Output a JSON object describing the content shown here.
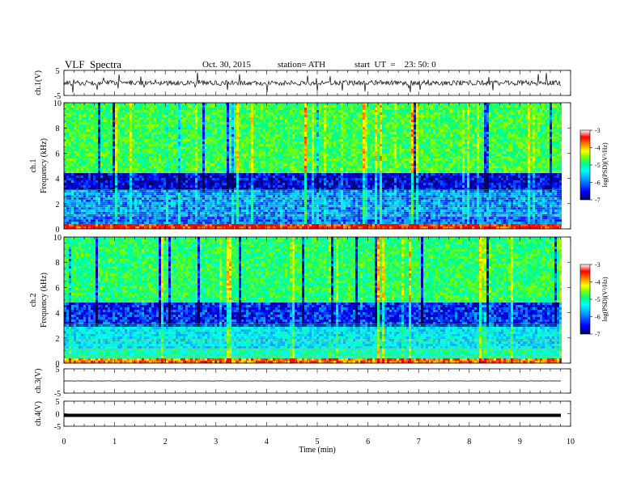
{
  "header": {
    "title": "VLF  Spectra",
    "date": "Oct. 30, 2015",
    "station": "station= ATH",
    "start": "start  UT  =    23: 50: 0"
  },
  "chart_data": [
    {
      "type": "line",
      "panel": "ch1-waveform",
      "ylabel": "ch.1(V)",
      "yticks": [
        "5",
        "-5"
      ],
      "ylim": [
        -5,
        5
      ],
      "xlim": [
        0,
        10
      ],
      "series": [
        {
          "description_hidden": true,
          "mean": 0,
          "amplitude": 1
        }
      ]
    },
    {
      "type": "heatmap",
      "panel": "ch1-spectrogram",
      "ylabel_channel": "ch.1",
      "ylabel": "Frequency  (kHz)",
      "yticks": [
        "0",
        "2",
        "4",
        "6",
        "8",
        "10"
      ],
      "ylim": [
        0,
        10
      ],
      "xlim": [
        0,
        9.8
      ],
      "colorbar": {
        "label": "log(PSD)(V²/Hz)",
        "ticks": [
          "-3",
          "-4",
          "-5",
          "-6",
          "-7"
        ],
        "range": [
          -7,
          -3
        ]
      },
      "bands": [
        {
          "from_khz": 0,
          "to_khz": 0.4,
          "level": -3.2
        },
        {
          "from_khz": 0.4,
          "to_khz": 1.0,
          "level": -6.2
        },
        {
          "from_khz": 1.0,
          "to_khz": 3.2,
          "level": -6.0
        },
        {
          "from_khz": 3.2,
          "to_khz": 4.5,
          "level": -6.6
        },
        {
          "from_khz": 4.5,
          "to_khz": 10,
          "level": -4.8
        }
      ]
    },
    {
      "type": "heatmap",
      "panel": "ch2-spectrogram",
      "ylabel_channel": "ch.2",
      "ylabel": "Frequency  (kHz)",
      "yticks": [
        "0",
        "2",
        "4",
        "6",
        "8",
        "10"
      ],
      "ylim": [
        0,
        10
      ],
      "xlim": [
        0,
        9.8
      ],
      "colorbar": {
        "label": "log(PSD)(V²/Hz)",
        "ticks": [
          "-3",
          "-4",
          "-5",
          "-6",
          "-7"
        ],
        "range": [
          -7,
          -3
        ]
      },
      "bands": [
        {
          "from_khz": 0,
          "to_khz": 0.4,
          "level": -3.5
        },
        {
          "from_khz": 0.4,
          "to_khz": 1.2,
          "level": -5.2
        },
        {
          "from_khz": 1.2,
          "to_khz": 3.0,
          "level": -5.6
        },
        {
          "from_khz": 3.0,
          "to_khz": 5.0,
          "level": -6.4
        },
        {
          "from_khz": 5.0,
          "to_khz": 10,
          "level": -4.9
        }
      ]
    },
    {
      "type": "line",
      "panel": "ch3-waveform",
      "ylabel": "ch.3(V)",
      "yticks": [
        "5",
        "-5"
      ],
      "ylim": [
        -5,
        5
      ],
      "xlim": [
        0,
        10
      ],
      "series": [
        {
          "mean": 0,
          "amplitude": 0.05
        }
      ]
    },
    {
      "type": "line",
      "panel": "ch4-waveform",
      "ylabel": "ch.4(V)",
      "yticks": [
        "5",
        "0",
        "-5"
      ],
      "ylim": [
        -5,
        5
      ],
      "xlim": [
        0,
        10
      ],
      "series": [
        {
          "mean": 0,
          "amplitude": 0.3
        }
      ]
    }
  ],
  "xaxis": {
    "label": "Time  (min)",
    "ticks": [
      "0",
      "1",
      "2",
      "3",
      "4",
      "5",
      "6",
      "7",
      "8",
      "9",
      "10"
    ]
  },
  "colors": {
    "colormap": [
      "#000060",
      "#0000ff",
      "#00a0ff",
      "#00ffff",
      "#00ff80",
      "#80ff00",
      "#ffff00",
      "#ff8000",
      "#ff0000",
      "#ffffff"
    ]
  }
}
